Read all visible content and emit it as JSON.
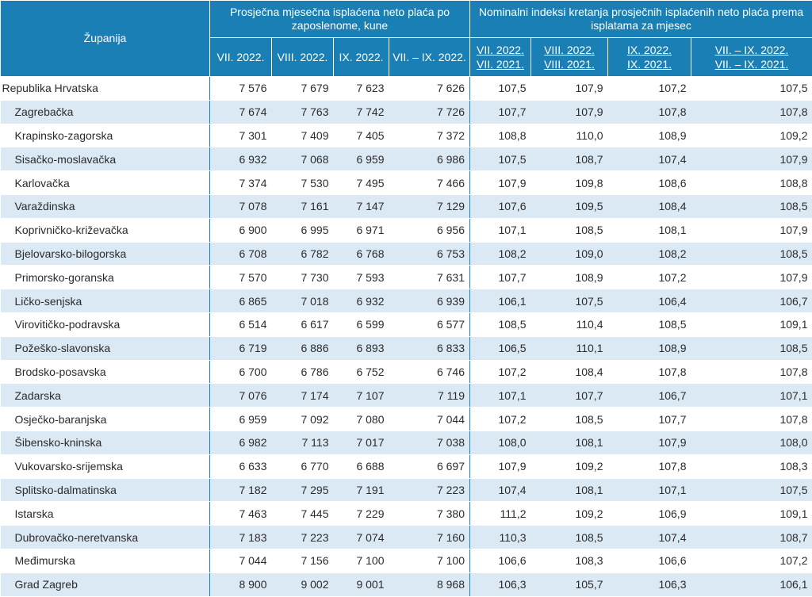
{
  "header": {
    "county_label": "Županija",
    "group_wage": "Prosječna mjesečna isplaćena neto plaća po zaposlenome, kune",
    "group_index": "Nominalni indeksi kretanja prosječnih isplaćenih neto plaća prema isplatama za mjesec",
    "wage_cols": [
      "VII. 2022.",
      "VIII. 2022.",
      "IX. 2022.",
      "VII. – IX. 2022."
    ],
    "index_cols": [
      [
        "VII. 2022.",
        "VII. 2021."
      ],
      [
        "VIII. 2022.",
        "VIII. 2021."
      ],
      [
        "IX. 2022.",
        "IX. 2021."
      ],
      [
        "VII. – IX. 2022.",
        "VII. – IX. 2021."
      ]
    ]
  },
  "rows": [
    {
      "name": "Republika Hrvatska",
      "w": [
        "7 576",
        "7 679",
        "7 623",
        "7 626"
      ],
      "i": [
        "107,5",
        "107,9",
        "107,2",
        "107,5"
      ]
    },
    {
      "name": "Zagrebačka",
      "w": [
        "7 674",
        "7 763",
        "7 742",
        "7 726"
      ],
      "i": [
        "107,7",
        "107,9",
        "107,8",
        "107,8"
      ]
    },
    {
      "name": "Krapinsko-zagorska",
      "w": [
        "7 301",
        "7 409",
        "7 405",
        "7 372"
      ],
      "i": [
        "108,8",
        "110,0",
        "108,9",
        "109,2"
      ]
    },
    {
      "name": "Sisačko-moslavačka",
      "w": [
        "6 932",
        "7 068",
        "6 959",
        "6 986"
      ],
      "i": [
        "107,5",
        "108,7",
        "107,4",
        "107,9"
      ]
    },
    {
      "name": "Karlovačka",
      "w": [
        "7 374",
        "7 530",
        "7 495",
        "7 466"
      ],
      "i": [
        "107,9",
        "109,8",
        "108,6",
        "108,8"
      ]
    },
    {
      "name": "Varaždinska",
      "w": [
        "7 078",
        "7 161",
        "7 147",
        "7 129"
      ],
      "i": [
        "107,6",
        "109,5",
        "108,4",
        "108,5"
      ]
    },
    {
      "name": "Koprivničko-križevačka",
      "w": [
        "6 900",
        "6 995",
        "6 971",
        "6 956"
      ],
      "i": [
        "107,1",
        "108,5",
        "108,1",
        "107,9"
      ]
    },
    {
      "name": "Bjelovarsko-bilogorska",
      "w": [
        "6 708",
        "6 782",
        "6 768",
        "6 753"
      ],
      "i": [
        "108,2",
        "109,0",
        "108,2",
        "108,5"
      ]
    },
    {
      "name": "Primorsko-goranska",
      "w": [
        "7 570",
        "7 730",
        "7 593",
        "7 631"
      ],
      "i": [
        "107,7",
        "108,9",
        "107,2",
        "107,9"
      ]
    },
    {
      "name": "Ličko-senjska",
      "w": [
        "6 865",
        "7 018",
        "6 932",
        "6 939"
      ],
      "i": [
        "106,1",
        "107,5",
        "106,4",
        "106,7"
      ]
    },
    {
      "name": "Virovitičko-podravska",
      "w": [
        "6 514",
        "6 617",
        "6 599",
        "6 577"
      ],
      "i": [
        "108,5",
        "110,4",
        "108,5",
        "109,1"
      ]
    },
    {
      "name": "Požeško-slavonska",
      "w": [
        "6 719",
        "6 886",
        "6 893",
        "6 833"
      ],
      "i": [
        "106,5",
        "110,1",
        "108,9",
        "108,5"
      ]
    },
    {
      "name": "Brodsko-posavska",
      "w": [
        "6 700",
        "6 786",
        "6 752",
        "6 746"
      ],
      "i": [
        "107,2",
        "108,4",
        "107,8",
        "107,8"
      ]
    },
    {
      "name": "Zadarska",
      "w": [
        "7 076",
        "7 174",
        "7 107",
        "7 119"
      ],
      "i": [
        "107,1",
        "107,7",
        "106,7",
        "107,1"
      ]
    },
    {
      "name": "Osječko-baranjska",
      "w": [
        "6 959",
        "7 092",
        "7 080",
        "7 044"
      ],
      "i": [
        "107,2",
        "108,5",
        "107,7",
        "107,8"
      ]
    },
    {
      "name": "Šibensko-kninska",
      "w": [
        "6 982",
        "7 113",
        "7 017",
        "7 038"
      ],
      "i": [
        "108,0",
        "108,1",
        "107,9",
        "108,0"
      ]
    },
    {
      "name": "Vukovarsko-srijemska",
      "w": [
        "6 633",
        "6 770",
        "6 688",
        "6 697"
      ],
      "i": [
        "107,9",
        "109,2",
        "107,8",
        "108,3"
      ]
    },
    {
      "name": "Splitsko-dalmatinska",
      "w": [
        "7 182",
        "7 295",
        "7 191",
        "7 223"
      ],
      "i": [
        "107,4",
        "108,1",
        "107,1",
        "107,5"
      ]
    },
    {
      "name": "Istarska",
      "w": [
        "7 463",
        "7 445",
        "7 229",
        "7 380"
      ],
      "i": [
        "111,2",
        "109,2",
        "106,9",
        "109,1"
      ]
    },
    {
      "name": "Dubrovačko-neretvanska",
      "w": [
        "7 183",
        "7 223",
        "7 074",
        "7 160"
      ],
      "i": [
        "110,3",
        "108,5",
        "107,4",
        "108,7"
      ]
    },
    {
      "name": "Međimurska",
      "w": [
        "7 044",
        "7 156",
        "7 100",
        "7 100"
      ],
      "i": [
        "106,6",
        "108,3",
        "106,6",
        "107,2"
      ]
    },
    {
      "name": "Grad Zagreb",
      "w": [
        "8 900",
        "9 002",
        "9 001",
        "8 968"
      ],
      "i": [
        "106,3",
        "105,7",
        "106,3",
        "106,1"
      ]
    }
  ]
}
